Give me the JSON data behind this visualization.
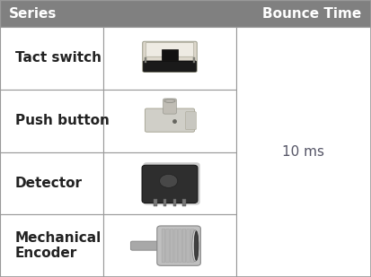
{
  "title_col1": "Series",
  "title_col2": "Bounce Time",
  "header_bg": "#808080",
  "header_text_color": "#ffffff",
  "cell_bg": "#ffffff",
  "border_color": "#999999",
  "rows": [
    {
      "series": "Tact switch"
    },
    {
      "series": "Push button"
    },
    {
      "series": "Detector"
    },
    {
      "series": "Mechanical\nEncoder"
    }
  ],
  "bounce_time": "10 ms",
  "bounce_time_fontsize": 11,
  "series_fontsize": 11,
  "header_fontsize": 11,
  "figsize": [
    4.13,
    3.09
  ],
  "dpi": 100,
  "text_color": "#222222",
  "bounce_time_color": "#555566"
}
